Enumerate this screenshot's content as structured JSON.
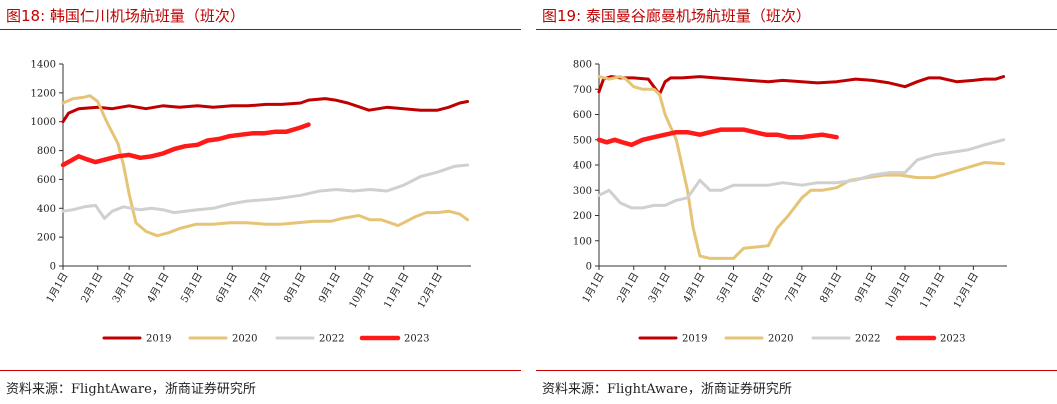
{
  "legend_labels": [
    "2019",
    "2020",
    "2022",
    "2023"
  ],
  "series_colors": [
    "#c00000",
    "#e6c476",
    "#d0d0d0",
    "#ff1a1a"
  ],
  "months": [
    "1月1日",
    "2月1日",
    "3月1日",
    "4月1日",
    "5月1日",
    "6月1日",
    "7月1日",
    "8月1日",
    "9月1日",
    "10月1日",
    "11月1日",
    "12月1日"
  ],
  "panels": {
    "left": {
      "title": "图18:  韩国仁川机场航班量（班次）",
      "source": "资料来源：FlightAware，浙商证券研究所"
    },
    "right": {
      "title": "图19:  泰国曼谷廊曼机场航班量（班次）",
      "source": "资料来源：FlightAware，浙商证券研究所"
    }
  },
  "chart_data": [
    {
      "type": "line",
      "title": "韩国仁川机场航班量（班次）",
      "ylim": [
        0,
        1400
      ],
      "yticks": [
        "0",
        "200",
        "400",
        "600",
        "800",
        "1000",
        "1200",
        "1400"
      ],
      "xticks": [
        "1月1日",
        "2月1日",
        "3月1日",
        "4月1日",
        "5月1日",
        "6月1日",
        "7月1日",
        "8月1日",
        "9月1日",
        "10月1日",
        "11月1日",
        "12月1日"
      ],
      "legend": "bottom",
      "grid": false,
      "series": [
        {
          "name": "2019",
          "color": "#c00000",
          "x": [
            1,
            6,
            15,
            32,
            45,
            60,
            75,
            90,
            105,
            121,
            135,
            152,
            166,
            182,
            196,
            213,
            220,
            235,
            244,
            255,
            274,
            290,
            305,
            320,
            335,
            345,
            355,
            362
          ],
          "values": [
            1000,
            1060,
            1090,
            1100,
            1090,
            1110,
            1090,
            1110,
            1100,
            1110,
            1100,
            1110,
            1110,
            1120,
            1120,
            1130,
            1150,
            1160,
            1150,
            1130,
            1080,
            1100,
            1090,
            1080,
            1080,
            1100,
            1130,
            1140
          ]
        },
        {
          "name": "2020",
          "color": "#e6c476",
          "x": [
            1,
            10,
            20,
            25,
            32,
            40,
            50,
            55,
            60,
            66,
            75,
            85,
            95,
            105,
            120,
            135,
            150,
            165,
            182,
            195,
            210,
            225,
            240,
            250,
            258,
            265,
            275,
            285,
            300,
            315,
            325,
            335,
            345,
            355,
            362
          ],
          "values": [
            1130,
            1160,
            1170,
            1180,
            1140,
            1000,
            850,
            700,
            500,
            300,
            240,
            210,
            230,
            260,
            290,
            290,
            300,
            300,
            290,
            290,
            300,
            310,
            310,
            330,
            340,
            350,
            320,
            320,
            280,
            340,
            370,
            370,
            380,
            360,
            320
          ]
        },
        {
          "name": "2022",
          "color": "#d0d0d0",
          "x": [
            1,
            10,
            20,
            30,
            38,
            45,
            55,
            62,
            70,
            80,
            90,
            100,
            110,
            121,
            135,
            150,
            165,
            182,
            195,
            213,
            230,
            245,
            260,
            275,
            290,
            305,
            320,
            335,
            350,
            362
          ],
          "values": [
            380,
            390,
            410,
            420,
            330,
            380,
            410,
            400,
            390,
            400,
            390,
            370,
            380,
            390,
            400,
            430,
            450,
            460,
            470,
            490,
            520,
            530,
            520,
            530,
            520,
            560,
            620,
            650,
            690,
            700
          ]
        },
        {
          "name": "2023",
          "color": "#ff1a1a",
          "x": [
            1,
            8,
            15,
            22,
            30,
            40,
            50,
            60,
            70,
            80,
            90,
            100,
            110,
            121,
            130,
            140,
            150,
            160,
            170,
            180,
            190,
            200,
            213,
            220
          ],
          "values": [
            700,
            730,
            760,
            740,
            720,
            740,
            760,
            770,
            750,
            760,
            780,
            810,
            830,
            840,
            870,
            880,
            900,
            910,
            920,
            920,
            930,
            930,
            960,
            980
          ]
        }
      ]
    },
    {
      "type": "line",
      "title": "泰国曼谷廊曼机场航班量（班次）",
      "ylim": [
        0,
        800
      ],
      "yticks": [
        "0",
        "100",
        "200",
        "300",
        "400",
        "500",
        "600",
        "700",
        "800"
      ],
      "xticks": [
        "1月1日",
        "2月1日",
        "3月1日",
        "4月1日",
        "5月1日",
        "6月1日",
        "7月1日",
        "8月1日",
        "9月1日",
        "10月1日",
        "11月1日",
        "12月1日"
      ],
      "legend": "bottom",
      "grid": false,
      "series": [
        {
          "name": "2019",
          "color": "#c00000",
          "x": [
            1,
            5,
            12,
            20,
            32,
            45,
            55,
            60,
            65,
            75,
            91,
            105,
            121,
            135,
            152,
            165,
            182,
            196,
            213,
            230,
            245,
            260,
            274,
            285,
            295,
            305,
            320,
            335,
            345,
            355,
            362
          ],
          "values": [
            690,
            740,
            750,
            745,
            745,
            740,
            680,
            730,
            745,
            745,
            750,
            745,
            740,
            735,
            730,
            735,
            730,
            725,
            730,
            740,
            735,
            725,
            710,
            730,
            745,
            745,
            730,
            735,
            740,
            740,
            750
          ]
        },
        {
          "name": "2020",
          "color": "#e6c476",
          "x": [
            1,
            10,
            20,
            25,
            32,
            40,
            50,
            55,
            60,
            70,
            80,
            85,
            91,
            100,
            110,
            121,
            130,
            140,
            152,
            160,
            170,
            182,
            190,
            200,
            213,
            225,
            240,
            255,
            270,
            285,
            300,
            315,
            330,
            345,
            362
          ],
          "values": [
            750,
            740,
            750,
            740,
            710,
            700,
            700,
            680,
            600,
            500,
            300,
            150,
            40,
            30,
            30,
            30,
            70,
            75,
            80,
            150,
            200,
            270,
            300,
            300,
            310,
            340,
            350,
            360,
            360,
            350,
            350,
            370,
            390,
            410,
            405
          ]
        },
        {
          "name": "2022",
          "color": "#d0d0d0",
          "x": [
            1,
            10,
            20,
            30,
            40,
            50,
            60,
            70,
            80,
            91,
            100,
            110,
            121,
            135,
            152,
            165,
            182,
            196,
            213,
            230,
            245,
            260,
            274,
            285,
            300,
            315,
            330,
            345,
            362
          ],
          "values": [
            280,
            300,
            250,
            230,
            230,
            240,
            240,
            260,
            270,
            340,
            300,
            300,
            320,
            320,
            320,
            330,
            320,
            330,
            330,
            340,
            360,
            370,
            370,
            420,
            440,
            450,
            460,
            480,
            500
          ]
        },
        {
          "name": "2023",
          "color": "#ff1a1a",
          "x": [
            1,
            8,
            15,
            22,
            30,
            40,
            50,
            60,
            70,
            80,
            91,
            100,
            110,
            121,
            130,
            140,
            150,
            160,
            170,
            182,
            190,
            200,
            213
          ],
          "values": [
            500,
            490,
            500,
            490,
            480,
            500,
            510,
            520,
            530,
            530,
            520,
            530,
            540,
            540,
            540,
            530,
            520,
            520,
            510,
            510,
            515,
            520,
            510
          ]
        }
      ]
    }
  ]
}
